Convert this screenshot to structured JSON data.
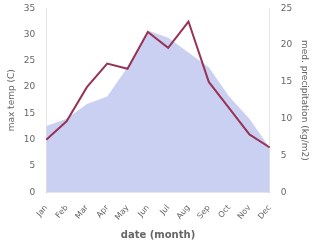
{
  "chart_data": {
    "type": "line",
    "xlabel": "date (month)",
    "ylabel": "max temp (C)",
    "y2label": "med. precipitation (kg/m2)",
    "categories": [
      "Jan",
      "Feb",
      "Mar",
      "Apr",
      "May",
      "Jun",
      "Jul",
      "Aug",
      "Sep",
      "Oct",
      "Nov",
      "Dec"
    ],
    "series": [
      {
        "type": "area",
        "axis": "y2",
        "color": "#c0c8f0",
        "values": [
          9,
          10,
          12,
          13,
          17,
          22,
          21,
          19,
          17,
          13,
          10,
          6
        ]
      },
      {
        "type": "line",
        "color": "#993355",
        "values": [
          10,
          13.5,
          20,
          24.5,
          23.5,
          30.5,
          27.5,
          32.5,
          21,
          16,
          11,
          8.5
        ]
      }
    ],
    "ylim": [
      0,
      35
    ],
    "yticks": [
      0,
      5,
      10,
      15,
      20,
      25,
      30,
      35
    ],
    "y2lim": [
      0,
      25
    ],
    "y2ticks": [
      0,
      5,
      10,
      15,
      20,
      25
    ],
    "grid": false
  }
}
